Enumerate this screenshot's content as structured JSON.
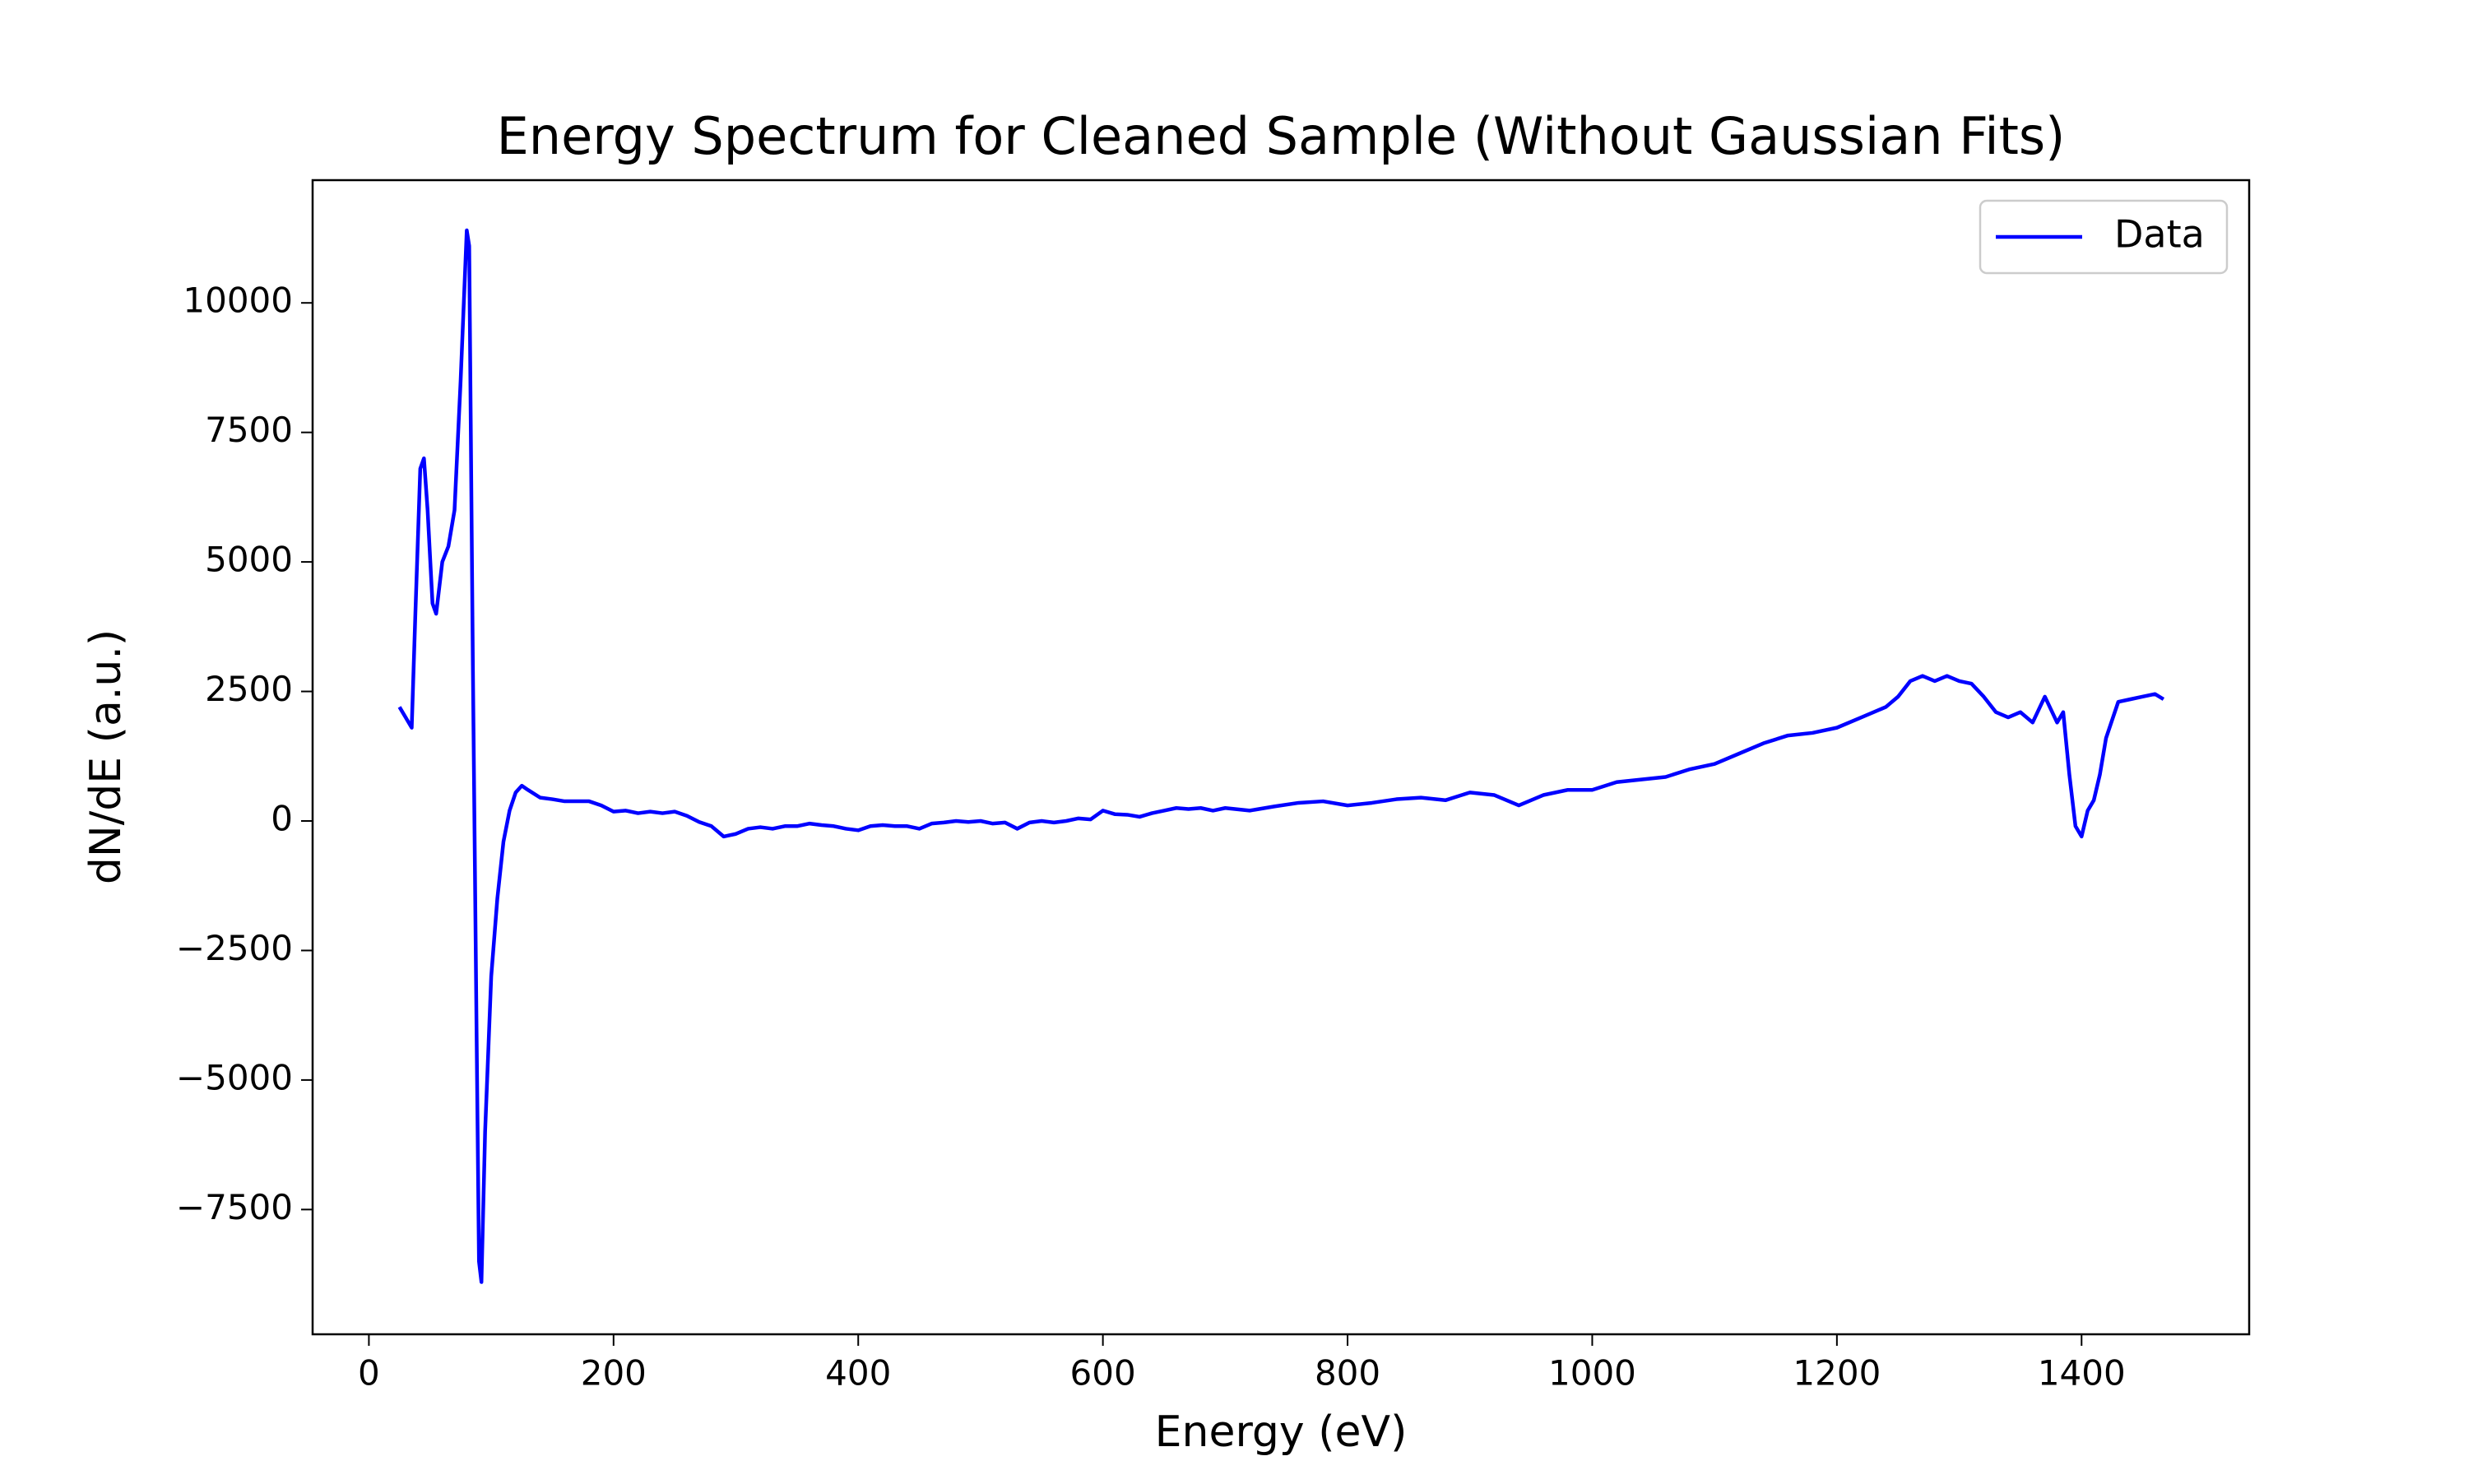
{
  "chart_data": {
    "type": "line",
    "title": "Energy Spectrum for Cleaned Sample (Without Gaussian Fits)",
    "xlabel": "Energy (eV)",
    "ylabel": "dN/dE (a.u.)",
    "x": [
      25,
      30,
      35,
      38,
      42,
      45,
      48,
      52,
      55,
      60,
      65,
      70,
      75,
      80,
      82,
      85,
      88,
      90,
      92,
      95,
      100,
      105,
      110,
      115,
      120,
      125,
      130,
      140,
      150,
      160,
      170,
      180,
      190,
      200,
      210,
      220,
      230,
      240,
      250,
      260,
      270,
      280,
      290,
      300,
      310,
      320,
      330,
      340,
      350,
      360,
      370,
      380,
      390,
      400,
      410,
      420,
      430,
      440,
      450,
      460,
      470,
      480,
      490,
      500,
      510,
      520,
      530,
      540,
      550,
      560,
      570,
      580,
      590,
      600,
      610,
      620,
      630,
      640,
      650,
      660,
      670,
      680,
      690,
      700,
      720,
      740,
      760,
      780,
      800,
      820,
      840,
      860,
      880,
      900,
      920,
      940,
      960,
      980,
      1000,
      1020,
      1040,
      1060,
      1080,
      1100,
      1120,
      1140,
      1160,
      1180,
      1200,
      1220,
      1240,
      1250,
      1260,
      1270,
      1280,
      1290,
      1300,
      1310,
      1320,
      1330,
      1340,
      1350,
      1360,
      1370,
      1380,
      1385,
      1390,
      1395,
      1400,
      1405,
      1410,
      1415,
      1420,
      1430,
      1440,
      1450,
      1460,
      1467
    ],
    "series": [
      {
        "name": "Data",
        "color": "#0000ff",
        "values": [
          2200,
          2000,
          1800,
          4000,
          6800,
          7000,
          6000,
          4200,
          4000,
          5000,
          5300,
          6000,
          8500,
          11400,
          11100,
          3000,
          -4000,
          -8500,
          -8900,
          -6000,
          -3000,
          -1500,
          -400,
          200,
          550,
          680,
          600,
          450,
          420,
          380,
          380,
          380,
          300,
          180,
          200,
          150,
          180,
          150,
          180,
          100,
          -20,
          -100,
          -300,
          -250,
          -150,
          -120,
          -150,
          -100,
          -100,
          -50,
          -80,
          -100,
          -150,
          -180,
          -100,
          -80,
          -100,
          -100,
          -150,
          -50,
          -30,
          0,
          -20,
          0,
          -50,
          -30,
          -150,
          -30,
          0,
          -30,
          0,
          50,
          30,
          200,
          130,
          120,
          80,
          150,
          200,
          250,
          230,
          250,
          200,
          250,
          200,
          280,
          350,
          380,
          300,
          350,
          420,
          450,
          400,
          550,
          500,
          300,
          500,
          600,
          600,
          750,
          800,
          850,
          1000,
          1100,
          1300,
          1500,
          1650,
          1700,
          1800,
          2000,
          2200,
          2400,
          2700,
          2800,
          2700,
          2800,
          2700,
          2650,
          2400,
          2100,
          2000,
          2100,
          1900,
          2400,
          1900,
          2100,
          900,
          -100,
          -300,
          200,
          400,
          900,
          1600,
          2300,
          2350,
          2400,
          2450,
          2350
        ]
      }
    ],
    "xlim": [
      -46,
      1537
    ],
    "ylim": [
      -9908,
      12369
    ],
    "xticks": [
      0,
      200,
      400,
      600,
      800,
      1000,
      1200,
      1400
    ],
    "yticks": [
      {
        "value": -7500,
        "label": "−7500"
      },
      {
        "value": -5000,
        "label": "−5000"
      },
      {
        "value": -2500,
        "label": "−2500"
      },
      0,
      2500,
      5000,
      7500,
      10000
    ],
    "legend": "upper right"
  }
}
